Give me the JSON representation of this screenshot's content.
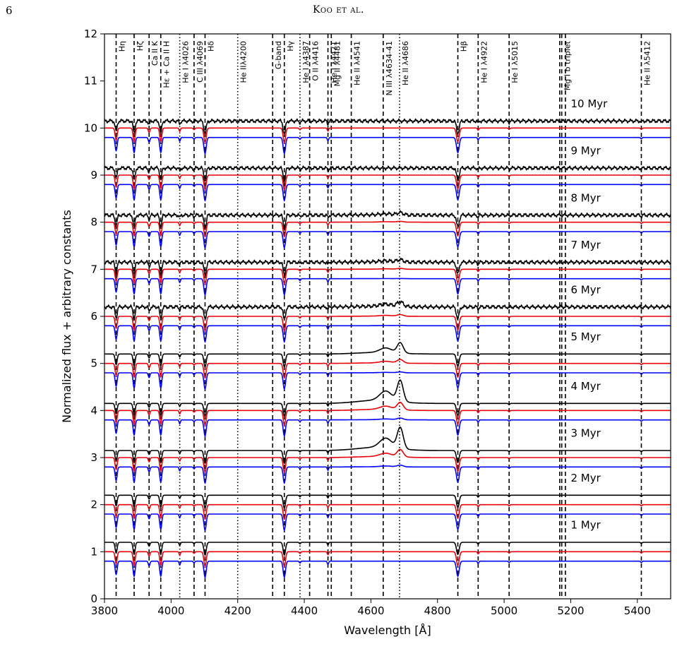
{
  "page_number": "6",
  "running_header": "Koo et al.",
  "caption_fragment": "",
  "chart_data": {
    "type": "line",
    "xlabel": "Wavelength [Å]",
    "ylabel": "Normalized flux + arbitrary constants",
    "xlim": [
      3800,
      5500
    ],
    "ylim": [
      0,
      12
    ],
    "xticks": [
      3800,
      4000,
      4200,
      4400,
      4600,
      4800,
      5000,
      5200,
      5400
    ],
    "yticks": [
      0,
      1,
      2,
      3,
      4,
      5,
      6,
      7,
      8,
      9,
      10,
      11,
      12
    ],
    "grid": false,
    "line_colors": [
      "#000000",
      "#e8000b",
      "#0000ff"
    ],
    "ages": [
      {
        "label": "1 Myr",
        "offsets": [
          1.2,
          1.0,
          0.8
        ],
        "wr_bump": 0.0
      },
      {
        "label": "2 Myr",
        "offsets": [
          2.2,
          2.0,
          1.8
        ],
        "wr_bump": 0.0
      },
      {
        "label": "3 Myr",
        "offsets": [
          3.15,
          3.0,
          2.8
        ],
        "wr_bump": 0.45
      },
      {
        "label": "4 Myr",
        "offsets": [
          4.15,
          4.0,
          3.8
        ],
        "wr_bump": 0.45
      },
      {
        "label": "5 Myr",
        "offsets": [
          5.2,
          5.0,
          4.8
        ],
        "wr_bump": 0.22
      },
      {
        "label": "6 Myr",
        "offsets": [
          6.2,
          6.0,
          5.8
        ],
        "wr_bump": 0.1
      },
      {
        "label": "7 Myr",
        "offsets": [
          7.15,
          7.0,
          6.8
        ],
        "wr_bump": 0.05
      },
      {
        "label": "8 Myr",
        "offsets": [
          8.15,
          8.0,
          7.8
        ],
        "wr_bump": 0.05
      },
      {
        "label": "9 Myr",
        "offsets": [
          9.15,
          9.0,
          8.8
        ],
        "wr_bump": 0.0
      },
      {
        "label": "10 Myr",
        "offsets": [
          10.15,
          10.0,
          9.8
        ],
        "wr_bump": 0.0
      }
    ],
    "lines": [
      {
        "label": "Hη",
        "x": 3835,
        "style": "dashed"
      },
      {
        "label": "Hζ",
        "x": 3889,
        "style": "dashed"
      },
      {
        "label": "Ca II K",
        "x": 3934,
        "style": "dashed"
      },
      {
        "label": "Hε + Ca II H",
        "x": 3969,
        "style": "dashed"
      },
      {
        "label": "He I λ4026",
        "x": 4026,
        "style": "dotted"
      },
      {
        "label": "C III λ4069",
        "x": 4069,
        "style": "dashed"
      },
      {
        "label": "Hδ",
        "x": 4102,
        "style": "dashed"
      },
      {
        "label": "He IIλ4200",
        "x": 4200,
        "style": "dotted"
      },
      {
        "label": "G-band",
        "x": 4305,
        "style": "dashed"
      },
      {
        "label": "Hγ",
        "x": 4340,
        "style": "dashed"
      },
      {
        "label": "He I λ4387",
        "x": 4387,
        "style": "dotted"
      },
      {
        "label": "O II λ4416",
        "x": 4416,
        "style": "dashed"
      },
      {
        "label": "He I λ4471",
        "x": 4471,
        "style": "dashed"
      },
      {
        "label": "Mg II λ4481",
        "x": 4481,
        "style": "dashed"
      },
      {
        "label": "He II λ4541",
        "x": 4541,
        "style": "dashed"
      },
      {
        "label": "N III λ4634-41",
        "x": 4637,
        "style": "dashed"
      },
      {
        "label": "He II λ4686",
        "x": 4686,
        "style": "dotted"
      },
      {
        "label": "Hβ",
        "x": 4861,
        "style": "dashed"
      },
      {
        "label": "He I λ4922",
        "x": 4922,
        "style": "dashed"
      },
      {
        "label": "He I λ5015",
        "x": 5015,
        "style": "dashed"
      },
      {
        "label": "",
        "x": 5167,
        "style": "dashed"
      },
      {
        "label": "Mg I b triplet",
        "x": 5173,
        "style": "dashed"
      },
      {
        "label": "",
        "x": 5184,
        "style": "dashed"
      },
      {
        "label": "He II λ5412",
        "x": 5412,
        "style": "dashed"
      }
    ]
  }
}
